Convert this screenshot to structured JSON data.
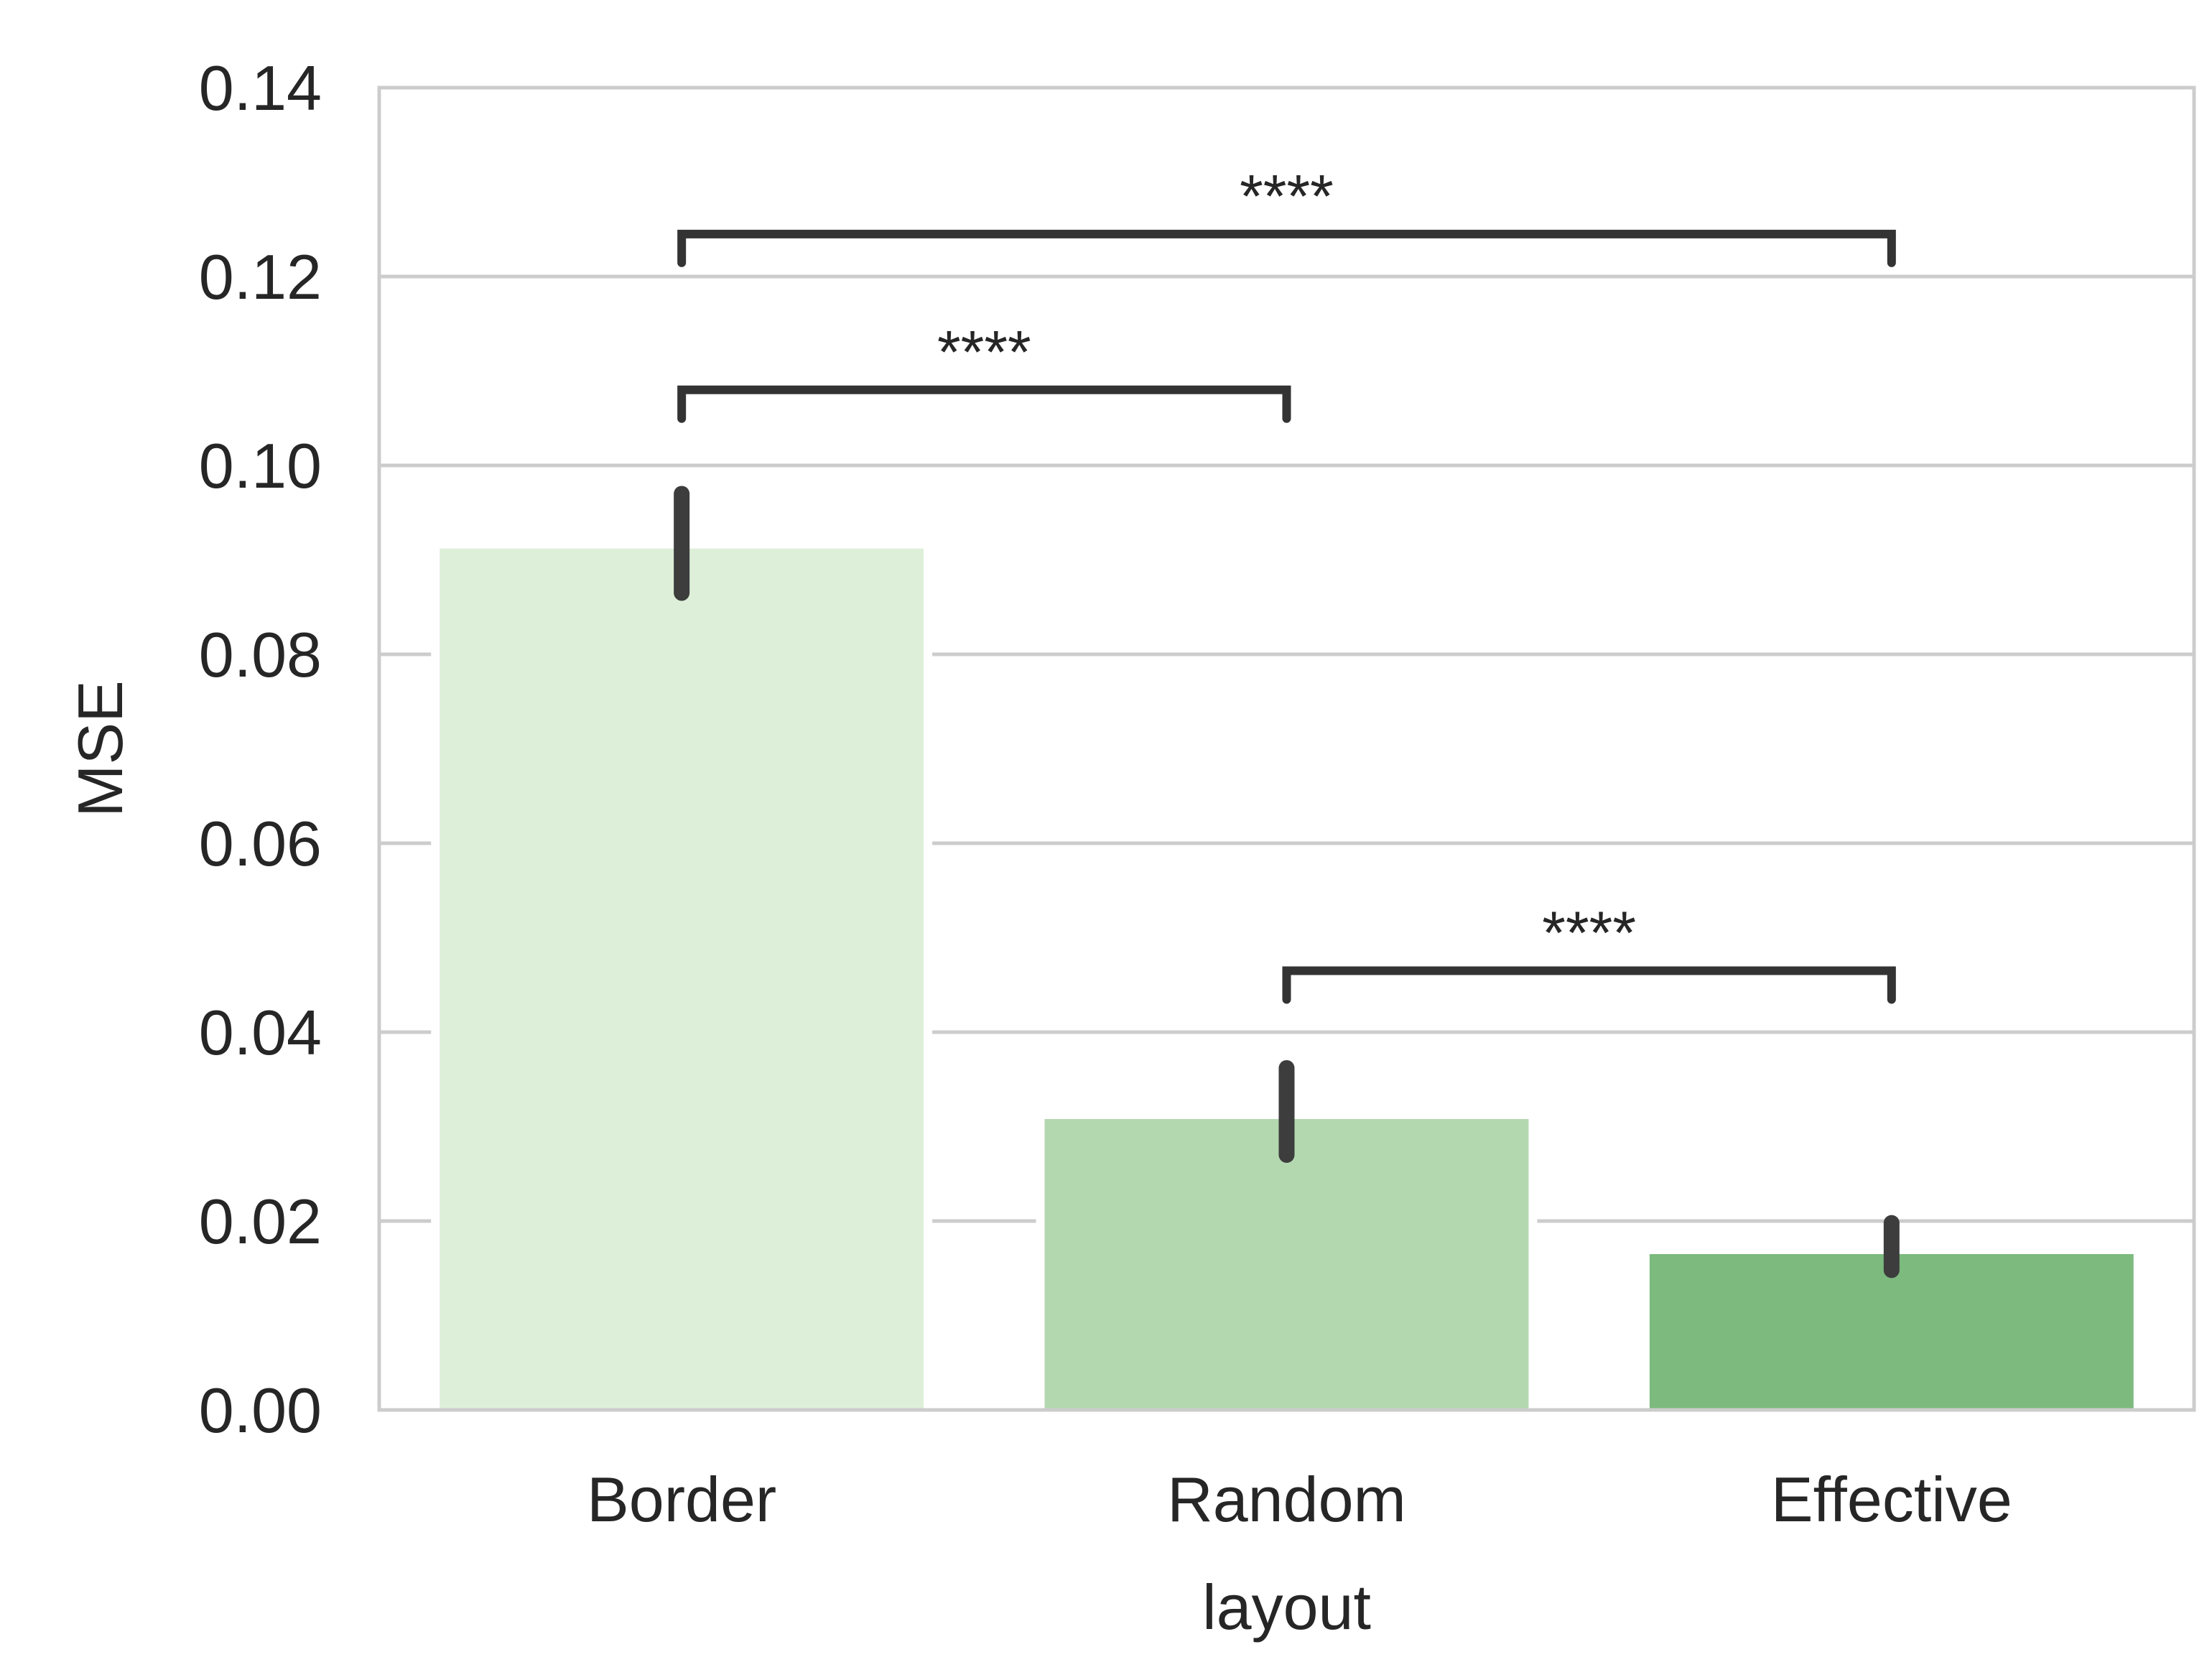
{
  "chart_data": {
    "type": "bar",
    "title": "",
    "xlabel": "layout",
    "ylabel": "MSE",
    "categories": [
      "Border",
      "Random",
      "Effective"
    ],
    "values": [
      0.0912,
      0.0308,
      0.0165
    ],
    "error_bars": [
      {
        "low": 0.0865,
        "high": 0.097
      },
      {
        "low": 0.027,
        "high": 0.0362
      },
      {
        "low": 0.0148,
        "high": 0.0198
      }
    ],
    "colors": [
      "#ddefd9",
      "#b3d8b0",
      "#7cba7e"
    ],
    "ylim": [
      0,
      0.14
    ],
    "yticks": [
      "0.00",
      "0.02",
      "0.04",
      "0.06",
      "0.08",
      "0.10",
      "0.12",
      "0.14"
    ],
    "grid": "horizontal",
    "significance": [
      {
        "from": 0,
        "to": 1,
        "label": "****",
        "y": 0.108
      },
      {
        "from": 1,
        "to": 2,
        "label": "****",
        "y": 0.0465
      },
      {
        "from": 0,
        "to": 2,
        "label": "****",
        "y": 0.1245
      }
    ]
  }
}
